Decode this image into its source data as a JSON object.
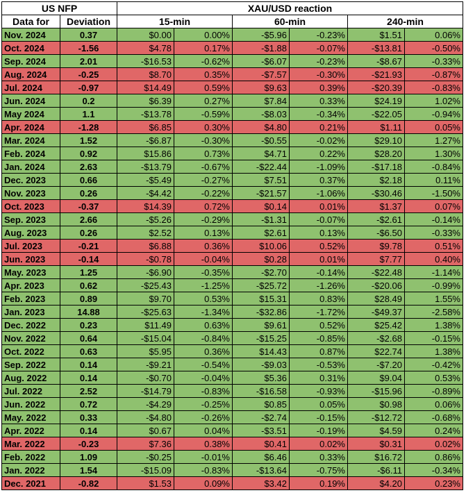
{
  "headers": {
    "group_nfp": "US NFP",
    "group_xau": "XAU/USD reaction",
    "col_date": "Data for",
    "col_dev": "Deviation",
    "col_15": "15-min",
    "col_60": "60-min",
    "col_240": "240-min"
  },
  "colors": {
    "positive": "#8fc16f",
    "negative": "#e06767"
  },
  "rows": [
    {
      "date": "Nov. 2024",
      "dev": "0.37",
      "r15": "$0.00",
      "p15": "0.00%",
      "r60": "-$5.96",
      "p60": "-0.23%",
      "r240": "$1.51",
      "p240": "0.06%",
      "sign": "pos"
    },
    {
      "date": "Oct. 2024",
      "dev": "-1.56",
      "r15": "$4.78",
      "p15": "0.17%",
      "r60": "-$1.88",
      "p60": "-0.07%",
      "r240": "-$13.81",
      "p240": "-0.50%",
      "sign": "neg"
    },
    {
      "date": "Sep. 2024",
      "dev": "2.01",
      "r15": "-$16.53",
      "p15": "-0.62%",
      "r60": "-$6.07",
      "p60": "-0.23%",
      "r240": "-$8.67",
      "p240": "-0.33%",
      "sign": "pos"
    },
    {
      "date": "Aug. 2024",
      "dev": "-0.25",
      "r15": "$8.70",
      "p15": "0.35%",
      "r60": "-$7.57",
      "p60": "-0.30%",
      "r240": "-$21.93",
      "p240": "-0.87%",
      "sign": "neg"
    },
    {
      "date": "Jul. 2024",
      "dev": "-0.97",
      "r15": "$14.49",
      "p15": "0.59%",
      "r60": "$9.63",
      "p60": "0.39%",
      "r240": "-$20.39",
      "p240": "-0.83%",
      "sign": "neg"
    },
    {
      "date": "Jun. 2024",
      "dev": "0.2",
      "r15": "$6.39",
      "p15": "0.27%",
      "r60": "$7.84",
      "p60": "0.33%",
      "r240": "$24.19",
      "p240": "1.02%",
      "sign": "pos"
    },
    {
      "date": "May 2024",
      "dev": "1.1",
      "r15": "-$13.78",
      "p15": "-0.59%",
      "r60": "-$8.03",
      "p60": "-0.34%",
      "r240": "-$22.05",
      "p240": "-0.94%",
      "sign": "pos"
    },
    {
      "date": "Apr. 2024",
      "dev": "-1.28",
      "r15": "$6.85",
      "p15": "0.30%",
      "r60": "$4.80",
      "p60": "0.21%",
      "r240": "$1.11",
      "p240": "0.05%",
      "sign": "neg"
    },
    {
      "date": "Mar. 2024",
      "dev": "1.52",
      "r15": "-$6.87",
      "p15": "-0.30%",
      "r60": "-$0.55",
      "p60": "-0.02%",
      "r240": "$29.10",
      "p240": "1.27%",
      "sign": "pos"
    },
    {
      "date": "Feb. 2024",
      "dev": "0.92",
      "r15": "$15.86",
      "p15": "0.73%",
      "r60": "$4.71",
      "p60": "0.22%",
      "r240": "$28.20",
      "p240": "1.30%",
      "sign": "pos"
    },
    {
      "date": "Jan. 2024",
      "dev": "2.63",
      "r15": "-$13.79",
      "p15": "-0.67%",
      "r60": "-$22.44",
      "p60": "-1.09%",
      "r240": "-$17.18",
      "p240": "-0.84%",
      "sign": "pos"
    },
    {
      "date": "Dec. 2023",
      "dev": "0.66",
      "r15": "-$5.49",
      "p15": "-0.27%",
      "r60": "$7.51",
      "p60": "0.37%",
      "r240": "$2.18",
      "p240": "0.11%",
      "sign": "pos"
    },
    {
      "date": "Nov. 2023",
      "dev": "0.26",
      "r15": "-$4.42",
      "p15": "-0.22%",
      "r60": "-$21.57",
      "p60": "-1.06%",
      "r240": "-$30.46",
      "p240": "-1.50%",
      "sign": "pos"
    },
    {
      "date": "Oct. 2023",
      "dev": "-0.37",
      "r15": "$14.39",
      "p15": "0.72%",
      "r60": "$0.14",
      "p60": "0.01%",
      "r240": "$1.37",
      "p240": "0.07%",
      "sign": "neg"
    },
    {
      "date": "Sep. 2023",
      "dev": "2.66",
      "r15": "-$5.26",
      "p15": "-0.29%",
      "r60": "-$1.31",
      "p60": "-0.07%",
      "r240": "-$2.61",
      "p240": "-0.14%",
      "sign": "pos"
    },
    {
      "date": "Aug. 2023",
      "dev": "0.26",
      "r15": "$2.52",
      "p15": "0.13%",
      "r60": "$2.61",
      "p60": "0.13%",
      "r240": "-$6.50",
      "p240": "-0.33%",
      "sign": "pos"
    },
    {
      "date": "Jul. 2023",
      "dev": "-0.21",
      "r15": "$6.88",
      "p15": "0.36%",
      "r60": "$10.06",
      "p60": "0.52%",
      "r240": "$9.78",
      "p240": "0.51%",
      "sign": "neg"
    },
    {
      "date": "Jun. 2023",
      "dev": "-0.14",
      "r15": "-$0.78",
      "p15": "-0.04%",
      "r60": "$0.28",
      "p60": "0.01%",
      "r240": "$7.77",
      "p240": "0.40%",
      "sign": "neg"
    },
    {
      "date": "May. 2023",
      "dev": "1.25",
      "r15": "-$6.90",
      "p15": "-0.35%",
      "r60": "-$2.70",
      "p60": "-0.14%",
      "r240": "-$22.48",
      "p240": "-1.14%",
      "sign": "pos"
    },
    {
      "date": "Apr. 2023",
      "dev": "0.62",
      "r15": "-$25.43",
      "p15": "-1.25%",
      "r60": "-$25.72",
      "p60": "-1.26%",
      "r240": "-$20.06",
      "p240": "-0.99%",
      "sign": "pos"
    },
    {
      "date": "Feb. 2023",
      "dev": "0.89",
      "r15": "$9.70",
      "p15": "0.53%",
      "r60": "$15.31",
      "p60": "0.83%",
      "r240": "$28.49",
      "p240": "1.55%",
      "sign": "pos"
    },
    {
      "date": "Jan. 2023",
      "dev": "14.88",
      "r15": "-$25.63",
      "p15": "-1.34%",
      "r60": "-$32.86",
      "p60": "-1.72%",
      "r240": "-$49.37",
      "p240": "-2.58%",
      "sign": "pos"
    },
    {
      "date": "Dec. 2022",
      "dev": "0.23",
      "r15": "$11.49",
      "p15": "0.63%",
      "r60": "$9.61",
      "p60": "0.52%",
      "r240": "$25.42",
      "p240": "1.38%",
      "sign": "pos"
    },
    {
      "date": "Nov. 2022",
      "dev": "0.64",
      "r15": "-$15.04",
      "p15": "-0.84%",
      "r60": "-$15.25",
      "p60": "-0.85%",
      "r240": "-$2.68",
      "p240": "-0.15%",
      "sign": "pos"
    },
    {
      "date": "Oct. 2022",
      "dev": "0.63",
      "r15": "$5.95",
      "p15": "0.36%",
      "r60": "$14.43",
      "p60": "0.87%",
      "r240": "$22.74",
      "p240": "1.38%",
      "sign": "pos"
    },
    {
      "date": "Sep. 2022",
      "dev": "0.14",
      "r15": "-$9.21",
      "p15": "-0.54%",
      "r60": "-$9.03",
      "p60": "-0.53%",
      "r240": "-$7.20",
      "p240": "-0.42%",
      "sign": "pos"
    },
    {
      "date": "Aug. 2022",
      "dev": "0.14",
      "r15": "-$0.70",
      "p15": "-0.04%",
      "r60": "$5.36",
      "p60": "0.31%",
      "r240": "$9.04",
      "p240": "0.53%",
      "sign": "pos"
    },
    {
      "date": "Jul. 2022",
      "dev": "2.52",
      "r15": "-$14.79",
      "p15": "-0.83%",
      "r60": "-$16.58",
      "p60": "-0.93%",
      "r240": "-$15.96",
      "p240": "-0.89%",
      "sign": "pos"
    },
    {
      "date": "Jun. 2022",
      "dev": "0.72",
      "r15": "-$4.29",
      "p15": "-0.25%",
      "r60": "$0.85",
      "p60": "0.05%",
      "r240": "$0.98",
      "p240": "0.06%",
      "sign": "pos"
    },
    {
      "date": "May. 2022",
      "dev": "0.33",
      "r15": "-$4.80",
      "p15": "-0.26%",
      "r60": "-$2.74",
      "p60": "-0.15%",
      "r240": "-$12.72",
      "p240": "-0.68%",
      "sign": "pos"
    },
    {
      "date": "Apr. 2022",
      "dev": "0.14",
      "r15": "$0.67",
      "p15": "0.04%",
      "r60": "-$3.51",
      "p60": "-0.19%",
      "r240": "$4.59",
      "p240": "0.24%",
      "sign": "pos"
    },
    {
      "date": "Mar. 2022",
      "dev": "-0.23",
      "r15": "$7.36",
      "p15": "0.38%",
      "r60": "$0.41",
      "p60": "0.02%",
      "r240": "$0.31",
      "p240": "0.02%",
      "sign": "neg"
    },
    {
      "date": "Feb. 2022",
      "dev": "1.09",
      "r15": "-$0.25",
      "p15": "-0.01%",
      "r60": "$6.46",
      "p60": "0.33%",
      "r240": "$16.72",
      "p240": "0.86%",
      "sign": "pos"
    },
    {
      "date": "Jan. 2022",
      "dev": "1.54",
      "r15": "-$15.09",
      "p15": "-0.83%",
      "r60": "-$13.64",
      "p60": "-0.75%",
      "r240": "-$6.11",
      "p240": "-0.34%",
      "sign": "pos"
    },
    {
      "date": "Dec. 2021",
      "dev": "-0.82",
      "r15": "$1.53",
      "p15": "0.09%",
      "r60": "$3.42",
      "p60": "0.19%",
      "r240": "$4.20",
      "p240": "0.23%",
      "sign": "neg"
    }
  ]
}
